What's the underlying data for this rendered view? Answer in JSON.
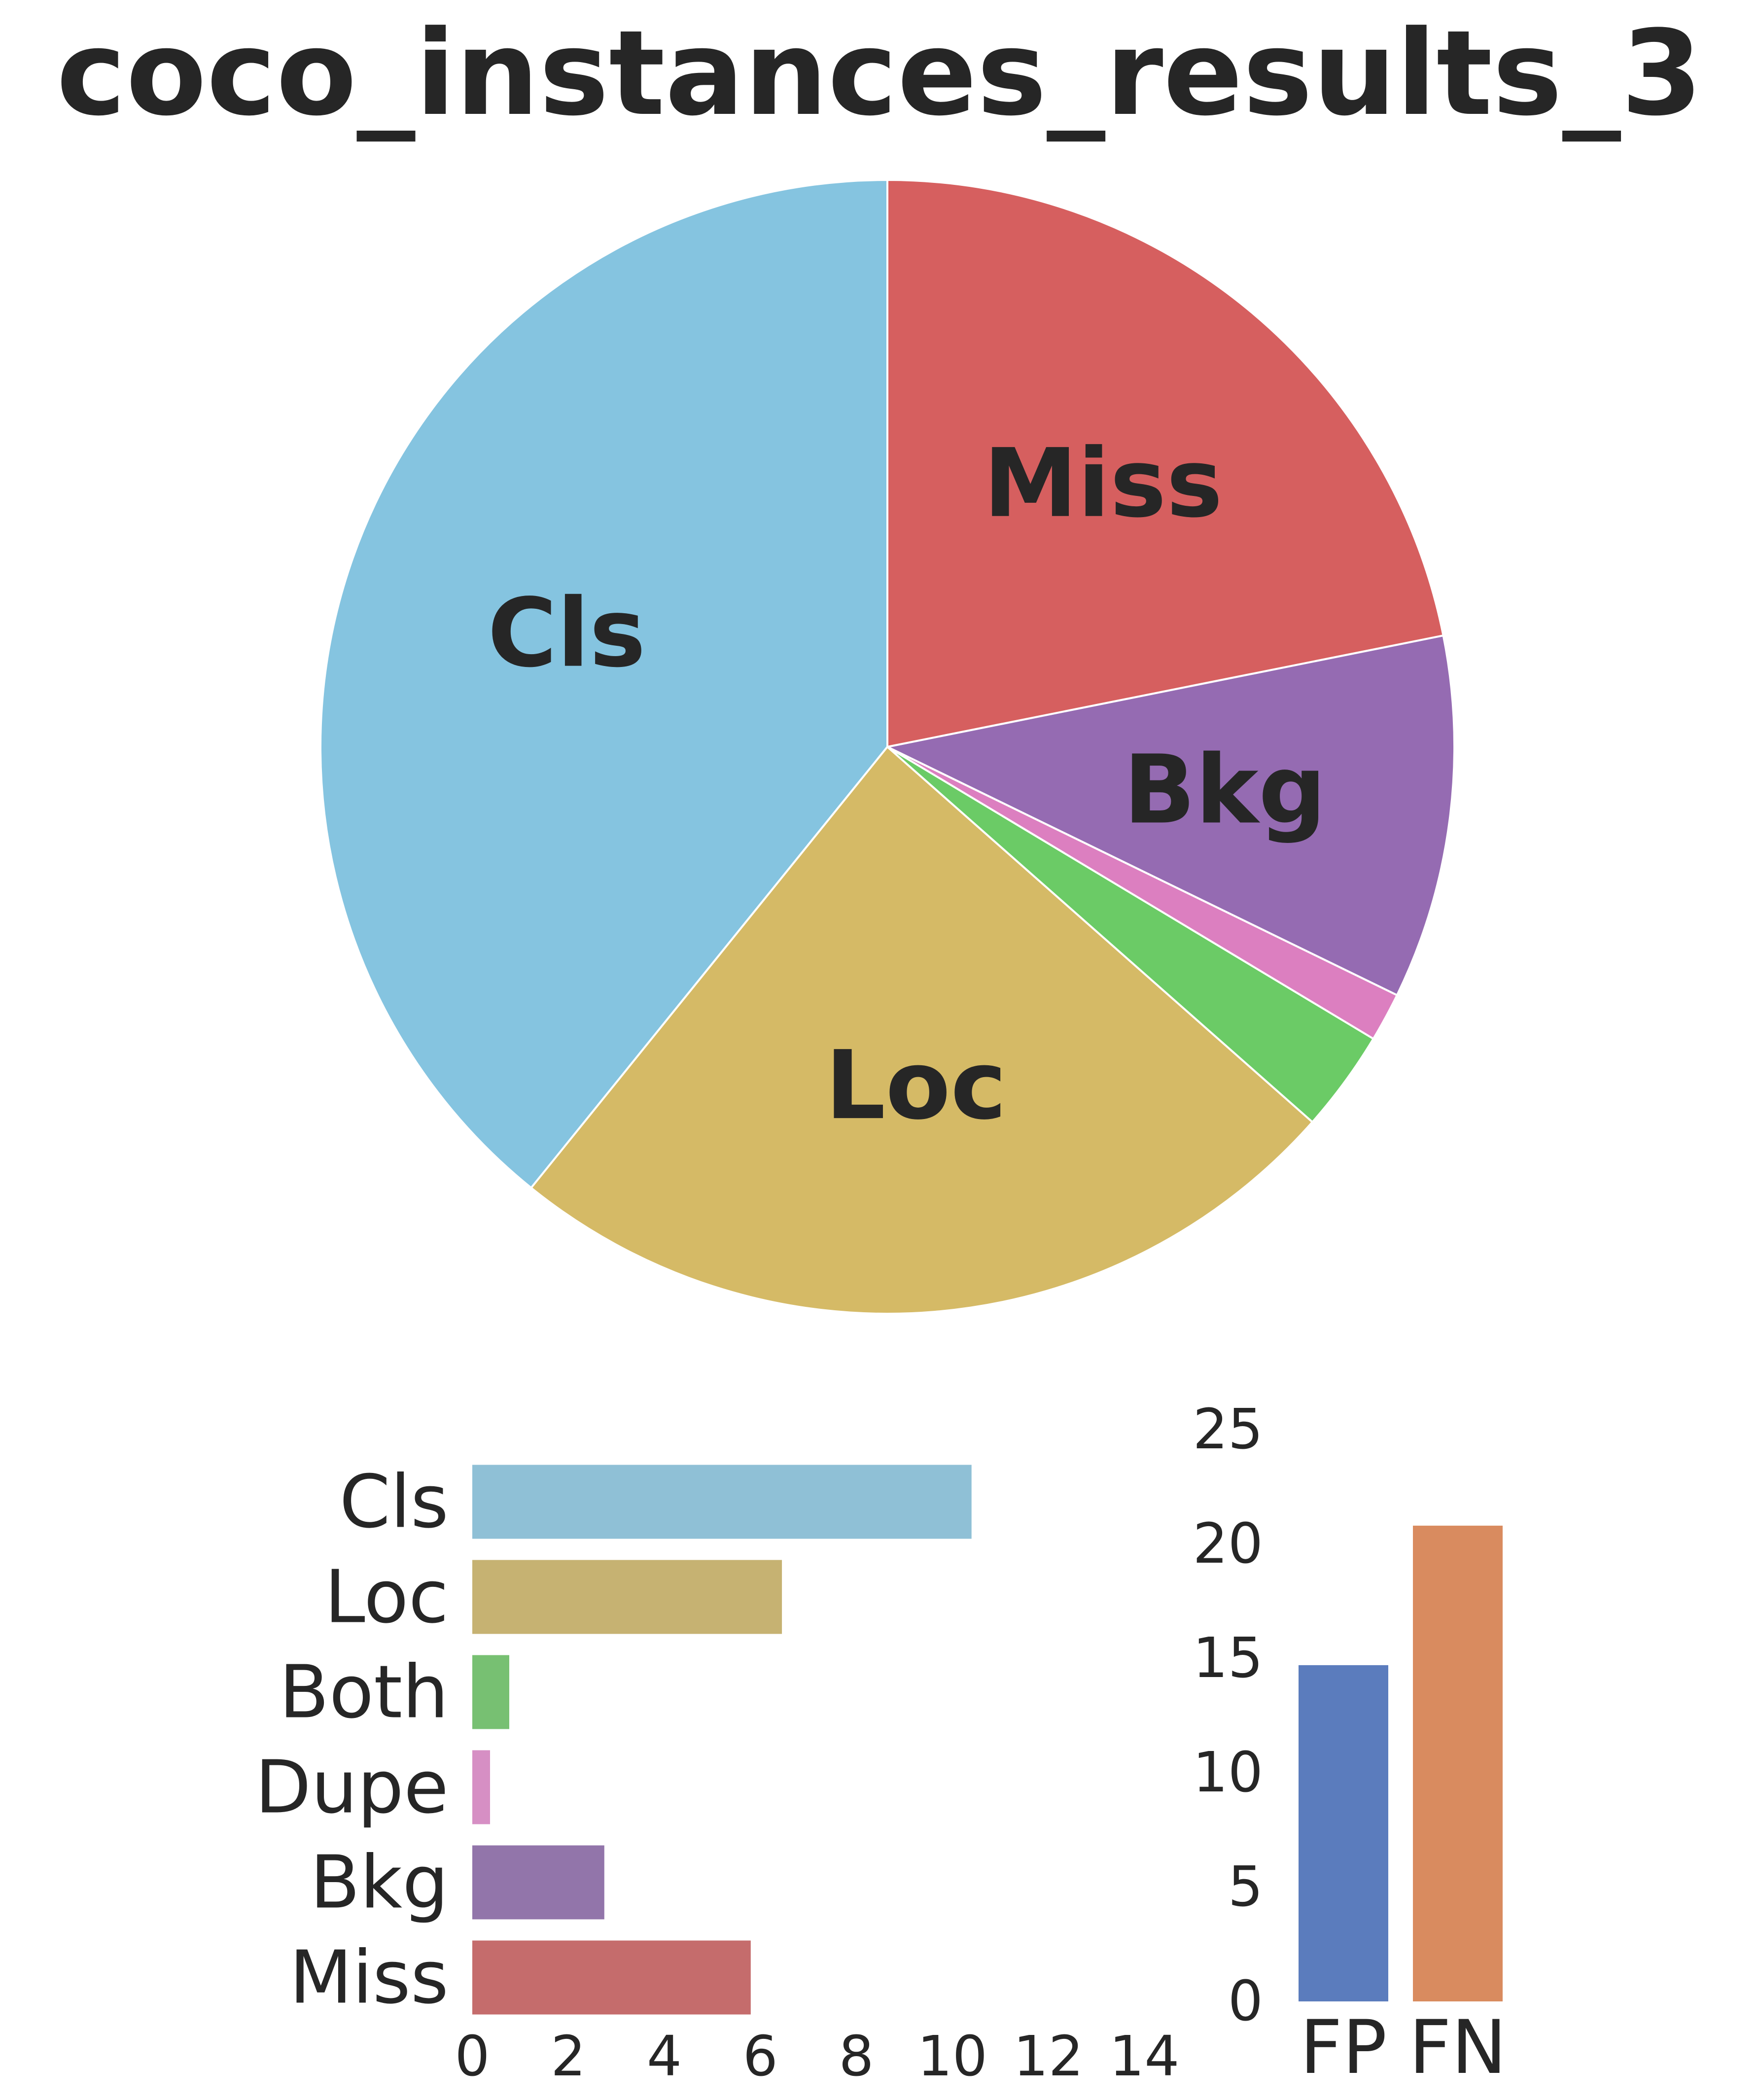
{
  "chart_data": [
    {
      "type": "pie",
      "title": "coco_instances_results_3",
      "categories": [
        "Cls",
        "Loc",
        "Both",
        "Dupe",
        "Bkg",
        "Miss"
      ],
      "values": [
        10.4,
        6.45,
        0.77,
        0.37,
        2.75,
        5.8
      ],
      "colors": [
        "#85c4e0",
        "#d5ba66",
        "#6bcb66",
        "#dc7fc0",
        "#956bb2",
        "#d65f5f"
      ],
      "slice_labels": [
        "Cls",
        "Loc",
        "",
        "",
        "Bkg",
        "Miss"
      ]
    },
    {
      "type": "bar",
      "orientation": "horizontal",
      "categories": [
        "Cls",
        "Loc",
        "Both",
        "Dupe",
        "Bkg",
        "Miss"
      ],
      "values": [
        10.4,
        6.45,
        0.77,
        0.37,
        2.75,
        5.8
      ],
      "colors": [
        "#8fc0d6",
        "#c6b272",
        "#77c072",
        "#d68fc4",
        "#9275aa",
        "#c56c6c"
      ],
      "xticks": [
        0,
        2,
        4,
        6,
        8,
        10,
        12,
        14
      ],
      "xlim": [
        0,
        14.5
      ]
    },
    {
      "type": "bar",
      "orientation": "vertical",
      "categories": [
        "FP",
        "FN"
      ],
      "values": [
        14.7,
        20.8
      ],
      "colors": [
        "#5b7cbd",
        "#d98b5f"
      ],
      "yticks": [
        0,
        5,
        10,
        15,
        20,
        25
      ],
      "ylim": [
        0,
        25
      ]
    }
  ]
}
